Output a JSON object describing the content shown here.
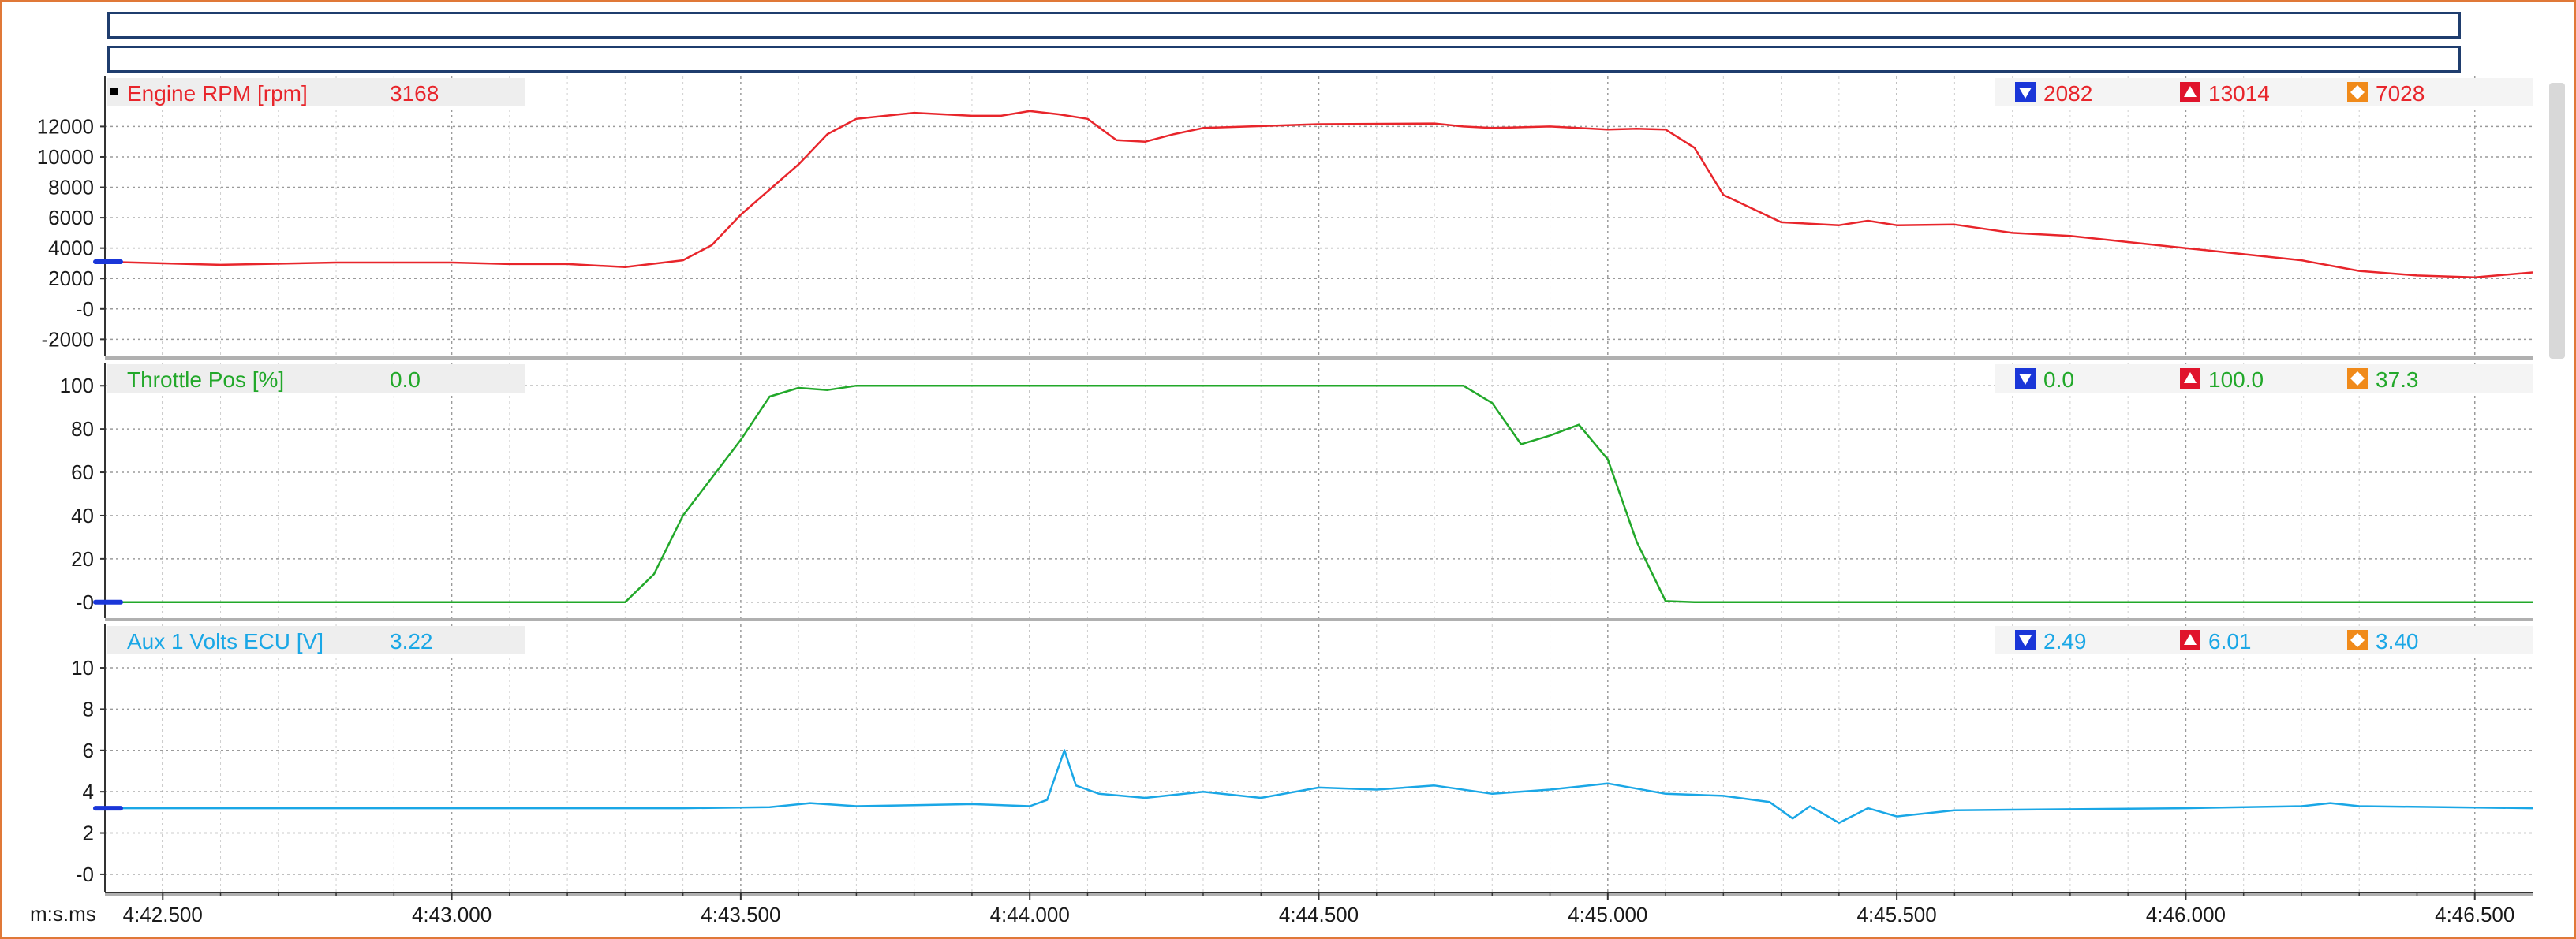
{
  "window": {
    "frame_color": "#e07838",
    "top_bar_color": "#1f3d6e"
  },
  "time_axis": {
    "unit_label": "m:s.ms",
    "ticks": [
      "4:42.500",
      "4:43.000",
      "4:43.500",
      "4:44.000",
      "4:44.500",
      "4:45.000",
      "4:45.500",
      "4:46.000",
      "4:46.500"
    ],
    "range_s": [
      282.4,
      286.6
    ]
  },
  "colors": {
    "rpm": "#e8252b",
    "throttle": "#22a82a",
    "aux": "#1aa7e6",
    "min_marker": "#1a36d8",
    "max_marker": "#e0142c",
    "avg_marker": "#f08a1a",
    "axis_marker": "#1a36d8"
  },
  "icons": {
    "min": "min-arrow-down-icon",
    "max": "max-arrow-up-icon",
    "avg": "average-diamond-icon"
  },
  "chart_data": [
    {
      "type": "line",
      "series": [
        {
          "name": "Engine RPM [rpm]",
          "cursor_value": "3168",
          "min": "2082",
          "max": "13014",
          "avg": "7028",
          "x": [
            282.4,
            282.6,
            282.8,
            283.0,
            283.1,
            283.2,
            283.3,
            283.4,
            283.45,
            283.5,
            283.6,
            283.65,
            283.7,
            283.8,
            283.9,
            283.95,
            284.0,
            284.05,
            284.1,
            284.15,
            284.2,
            284.25,
            284.3,
            284.5,
            284.7,
            284.75,
            284.8,
            284.9,
            285.0,
            285.05,
            285.1,
            285.15,
            285.2,
            285.3,
            285.4,
            285.45,
            285.5,
            285.6,
            285.7,
            285.8,
            285.9,
            286.0,
            286.2,
            286.3,
            286.4,
            286.5,
            286.6
          ],
          "y": [
            3100,
            2900,
            3050,
            3050,
            2950,
            2950,
            2750,
            3200,
            4200,
            6200,
            9500,
            11500,
            12500,
            12900,
            12700,
            12700,
            13014,
            12800,
            12500,
            11100,
            11000,
            11500,
            11900,
            12150,
            12200,
            12000,
            11900,
            12000,
            11800,
            11850,
            11800,
            10600,
            7500,
            5700,
            5500,
            5800,
            5500,
            5550,
            5000,
            4800,
            4400,
            4000,
            3200,
            2500,
            2200,
            2082,
            2400
          ]
        }
      ],
      "title": "",
      "xlabel": "m:s.ms",
      "ylabel": "",
      "yticks": [
        -2000,
        0,
        2000,
        4000,
        6000,
        8000,
        10000,
        12000
      ],
      "ylim": [
        -2500,
        14200
      ],
      "grid": true
    },
    {
      "type": "line",
      "series": [
        {
          "name": "Throttle Pos [%]",
          "cursor_value": "0.0",
          "min": "0.0",
          "max": "100.0",
          "avg": "37.3",
          "x": [
            282.4,
            283.3,
            283.35,
            283.4,
            283.5,
            283.55,
            283.6,
            283.65,
            283.7,
            284.7,
            284.75,
            284.8,
            284.85,
            284.9,
            284.95,
            285.0,
            285.05,
            285.1,
            285.15,
            286.6
          ],
          "y": [
            0,
            0,
            13,
            40,
            75,
            95,
            99,
            98,
            100,
            100,
            100,
            92,
            73,
            77,
            82,
            66,
            28,
            0.5,
            0,
            0
          ]
        }
      ],
      "title": "",
      "xlabel": "",
      "ylabel": "",
      "yticks": [
        0,
        20,
        40,
        60,
        80,
        100
      ],
      "ylim": [
        -3,
        103
      ],
      "grid": true
    },
    {
      "type": "line",
      "series": [
        {
          "name": "Aux 1 Volts ECU [V]",
          "cursor_value": "3.22",
          "min": "2.49",
          "max": "6.01",
          "avg": "3.40",
          "x": [
            282.4,
            283.4,
            283.55,
            283.62,
            283.7,
            283.8,
            283.9,
            284.0,
            284.03,
            284.06,
            284.08,
            284.12,
            284.2,
            284.3,
            284.4,
            284.5,
            284.6,
            284.7,
            284.8,
            284.9,
            285.0,
            285.1,
            285.2,
            285.28,
            285.32,
            285.35,
            285.4,
            285.45,
            285.5,
            285.6,
            286.0,
            286.2,
            286.25,
            286.3,
            286.6
          ],
          "y": [
            3.2,
            3.2,
            3.25,
            3.45,
            3.3,
            3.35,
            3.4,
            3.3,
            3.6,
            6.01,
            4.3,
            3.9,
            3.7,
            4.0,
            3.7,
            4.2,
            4.1,
            4.3,
            3.9,
            4.1,
            4.4,
            3.9,
            3.8,
            3.5,
            2.7,
            3.3,
            2.49,
            3.2,
            2.8,
            3.1,
            3.2,
            3.3,
            3.45,
            3.3,
            3.2
          ]
        }
      ],
      "title": "",
      "xlabel": "",
      "ylabel": "",
      "yticks": [
        0,
        2,
        4,
        6,
        8,
        10
      ],
      "ylim": [
        -0.5,
        11.3
      ],
      "grid": true
    }
  ]
}
